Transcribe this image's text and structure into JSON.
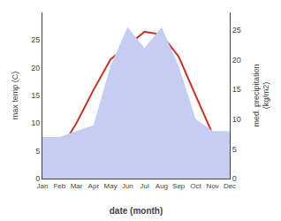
{
  "chart_data": {
    "type": "line",
    "xlabel": "date (month)",
    "ylabel": "max temp (C)",
    "y2label": "med. precipitation\n(kg/m2)",
    "categories": [
      "Jan",
      "Feb",
      "Mar",
      "Apr",
      "May",
      "Jun",
      "Jul",
      "Aug",
      "Sep",
      "Oct",
      "Nov",
      "Dec"
    ],
    "series": [
      {
        "type": "area",
        "axis": "y2",
        "color": "#c5cef0",
        "values": [
          7.0,
          7.0,
          8.0,
          9.0,
          19.0,
          25.5,
          22.0,
          25.5,
          19.0,
          10.0,
          8.0,
          8.0
        ]
      },
      {
        "type": "line",
        "color": "#c0392b",
        "values": [
          3.5,
          5.0,
          10.0,
          16.0,
          21.5,
          24.0,
          26.5,
          26.0,
          22.0,
          15.0,
          8.0,
          4.0
        ]
      }
    ],
    "ylim": [
      0,
      30
    ],
    "yticks": [
      0,
      5,
      10,
      15,
      20,
      25
    ],
    "y2lim": [
      0,
      28
    ],
    "y2ticks": [
      0,
      5,
      10,
      15,
      20,
      25
    ],
    "grid": false
  }
}
